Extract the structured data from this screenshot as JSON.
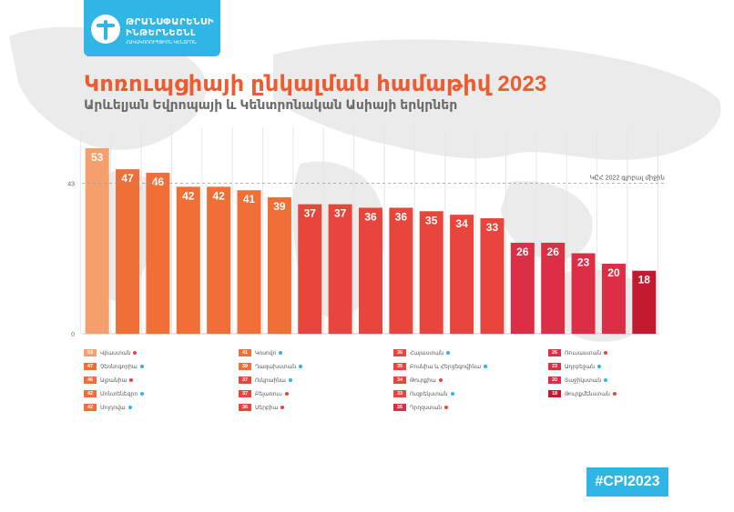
{
  "logo": {
    "line1": "ԹՐԱՆՍՓԱՐԵՆՍԻ",
    "line2": "ԻՆԹԵՐՆԵՇՆԼ",
    "line3": "ՀԱԿԱԿՈՌՈՒՊՑԻՈՆ ԿԵՆՏՐՈՆ"
  },
  "title": "Կոռուպցիայի ընկալման համաթիվ 2023",
  "subtitle": "Արևելյան Եվրոպայի և Կենտրոնական Ասիայի երկրներ",
  "hashtag": "#CPI2023",
  "colors": {
    "bar_light": "#f4a06c",
    "bar_orange": "#ef6f36",
    "bar_red": "#e8453c",
    "bar_pink": "#dc2f45",
    "bar_dark": "#c2192e",
    "accent": "#2fb6e6"
  },
  "chart_data": {
    "type": "bar",
    "values": [
      53,
      47,
      46,
      42,
      42,
      41,
      39,
      37,
      37,
      36,
      36,
      35,
      34,
      33,
      26,
      26,
      23,
      20,
      18
    ],
    "value_labels": [
      "53",
      "47",
      "46",
      "42",
      "42",
      "41",
      "39",
      "37",
      "37",
      "36",
      "36",
      "35",
      "34",
      "33",
      "26",
      "26",
      "23",
      "20",
      "18"
    ],
    "ylim": [
      0,
      53
    ],
    "yticks": [
      "0",
      "43"
    ],
    "reference_line": {
      "value": 43,
      "label": "ԿԸՀ 2022 գլոբալ միջին"
    },
    "grid": true,
    "bar_color_groups": [
      "bar_light",
      "bar_orange",
      "bar_orange",
      "bar_orange",
      "bar_orange",
      "bar_orange",
      "bar_orange",
      "bar_red",
      "bar_red",
      "bar_red",
      "bar_red",
      "bar_red",
      "bar_red",
      "bar_red",
      "bar_pink",
      "bar_pink",
      "bar_pink",
      "bar_pink",
      "bar_dark"
    ]
  },
  "legend": [
    {
      "score": "53",
      "country": "Վրաստան",
      "trend": "up",
      "color_key": "bar_light"
    },
    {
      "score": "47",
      "country": "Չեռնոգորիա",
      "trend": "flat",
      "color_key": "bar_orange"
    },
    {
      "score": "46",
      "country": "Ալբանիա",
      "trend": "up",
      "color_key": "bar_orange"
    },
    {
      "score": "42",
      "country": "Մոնտենեգրո",
      "trend": "flat",
      "color_key": "bar_orange"
    },
    {
      "score": "42",
      "country": "Մոլդովա",
      "trend": "flat",
      "color_key": "bar_orange"
    },
    {
      "score": "41",
      "country": "Կոսովո",
      "trend": "flat",
      "color_key": "bar_orange"
    },
    {
      "score": "39",
      "country": "Ղազախստան",
      "trend": "flat",
      "color_key": "bar_orange"
    },
    {
      "score": "37",
      "country": "Ուկրաինա",
      "trend": "flat",
      "color_key": "bar_red"
    },
    {
      "score": "37",
      "country": "Բելառուս",
      "trend": "up",
      "color_key": "bar_red"
    },
    {
      "score": "36",
      "country": "Սերբիա",
      "trend": "up",
      "color_key": "bar_red"
    },
    {
      "score": "36",
      "country": "Հայաստան",
      "trend": "flat",
      "color_key": "bar_red"
    },
    {
      "score": "35",
      "country": "Բոսնիա և Հերցեգովինա",
      "trend": "flat",
      "color_key": "bar_red"
    },
    {
      "score": "34",
      "country": "Թուրքիա",
      "trend": "up",
      "color_key": "bar_red"
    },
    {
      "score": "33",
      "country": "Ուզբեկստան",
      "trend": "flat",
      "color_key": "bar_red"
    },
    {
      "score": "26",
      "country": "Ղրղզստան",
      "trend": "up",
      "color_key": "bar_pink"
    },
    {
      "score": "26",
      "country": "Ռուսաստան",
      "trend": "up",
      "color_key": "bar_pink"
    },
    {
      "score": "23",
      "country": "Ադրբեջան",
      "trend": "flat",
      "color_key": "bar_pink"
    },
    {
      "score": "20",
      "country": "Տաջիկստան",
      "trend": "flat",
      "color_key": "bar_pink"
    },
    {
      "score": "18",
      "country": "Թուրքմենստան",
      "trend": "up",
      "color_key": "bar_dark"
    }
  ]
}
